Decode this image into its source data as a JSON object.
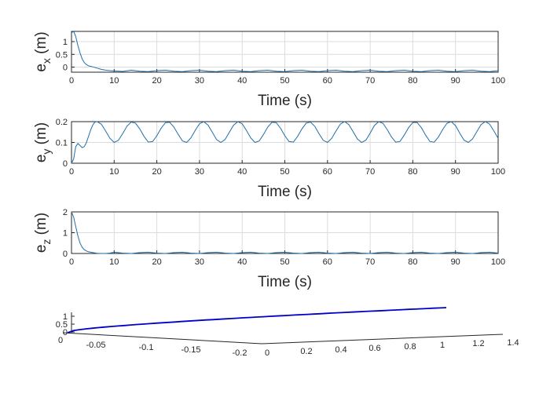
{
  "chart_data": [
    {
      "type": "line",
      "xlabel": "Time (s)",
      "ylabel_base": "e",
      "ylabel_sub": "x",
      "ylabel_unit": " (m)",
      "xlim": [
        0,
        100
      ],
      "ylim": [
        -0.2,
        1.4
      ],
      "xticks": [
        "0",
        "10",
        "20",
        "30",
        "40",
        "50",
        "60",
        "70",
        "80",
        "90",
        "100"
      ],
      "yticks": [
        "0",
        "0.5",
        "1"
      ],
      "grid": true,
      "series": [
        {
          "color": "#1f6fa8",
          "x": [
            0,
            0.5,
            1,
            1.5,
            2,
            2.5,
            3,
            3.5,
            4,
            5,
            6,
            7,
            8,
            9,
            10,
            12,
            14,
            16,
            18,
            20,
            22,
            24,
            26,
            28,
            30,
            32,
            34,
            36,
            38,
            40,
            42,
            44,
            46,
            48,
            50,
            52,
            54,
            56,
            58,
            60,
            62,
            64,
            66,
            68,
            70,
            72,
            74,
            76,
            78,
            80,
            82,
            84,
            86,
            88,
            90,
            92,
            94,
            96,
            98,
            100
          ],
          "y": [
            1.35,
            1.4,
            1.2,
            0.85,
            0.55,
            0.32,
            0.18,
            0.1,
            0.05,
            0.01,
            -0.04,
            -0.09,
            -0.12,
            -0.14,
            -0.15,
            -0.17,
            -0.12,
            -0.16,
            -0.18,
            -0.14,
            -0.12,
            -0.16,
            -0.18,
            -0.14,
            -0.12,
            -0.16,
            -0.18,
            -0.14,
            -0.12,
            -0.16,
            -0.18,
            -0.14,
            -0.12,
            -0.16,
            -0.18,
            -0.14,
            -0.12,
            -0.16,
            -0.18,
            -0.14,
            -0.12,
            -0.16,
            -0.18,
            -0.14,
            -0.12,
            -0.16,
            -0.18,
            -0.14,
            -0.12,
            -0.16,
            -0.18,
            -0.14,
            -0.12,
            -0.16,
            -0.18,
            -0.14,
            -0.12,
            -0.16,
            -0.18,
            -0.14
          ]
        }
      ]
    },
    {
      "type": "line",
      "xlabel": "Time (s)",
      "ylabel_base": "e",
      "ylabel_sub": "y",
      "ylabel_unit": " (m)",
      "xlim": [
        0,
        100
      ],
      "ylim": [
        0,
        0.2
      ],
      "xticks": [
        "0",
        "10",
        "20",
        "30",
        "40",
        "50",
        "60",
        "70",
        "80",
        "90",
        "100"
      ],
      "yticks": [
        "0",
        "0.1",
        "0.2"
      ],
      "grid": true,
      "series": [
        {
          "color": "#1f6fa8",
          "x": [
            0,
            0.5,
            1,
            1.5,
            2,
            2.5,
            3,
            3.5,
            4,
            4.5,
            5,
            5.5,
            6,
            7,
            8,
            9,
            10,
            11,
            12,
            13,
            14,
            15,
            16,
            17,
            18,
            19,
            20,
            21,
            22,
            23,
            24,
            25,
            26,
            27,
            28,
            29,
            30,
            31,
            32,
            33,
            34,
            35,
            36,
            37,
            38,
            39,
            40,
            41,
            42,
            43,
            44,
            45,
            46,
            47,
            48,
            49,
            50,
            51,
            52,
            53,
            54,
            55,
            56,
            57,
            58,
            59,
            60,
            61,
            62,
            63,
            64,
            65,
            66,
            67,
            68,
            69,
            70,
            71,
            72,
            73,
            74,
            75,
            76,
            77,
            78,
            79,
            80,
            81,
            82,
            83,
            84,
            85,
            86,
            87,
            88,
            89,
            90,
            91,
            92,
            93,
            94,
            95,
            96,
            97,
            98,
            99,
            100
          ],
          "y": [
            0.0,
            0.02,
            0.08,
            0.095,
            0.085,
            0.075,
            0.08,
            0.1,
            0.13,
            0.16,
            0.185,
            0.198,
            0.2,
            0.188,
            0.155,
            0.12,
            0.1,
            0.11,
            0.143,
            0.178,
            0.198,
            0.193,
            0.165,
            0.129,
            0.102,
            0.104,
            0.132,
            0.168,
            0.195,
            0.197,
            0.174,
            0.139,
            0.107,
            0.1,
            0.122,
            0.158,
            0.19,
            0.2,
            0.183,
            0.149,
            0.114,
            0.1,
            0.114,
            0.149,
            0.183,
            0.2,
            0.19,
            0.158,
            0.122,
            0.1,
            0.107,
            0.139,
            0.174,
            0.197,
            0.195,
            0.168,
            0.132,
            0.104,
            0.102,
            0.129,
            0.165,
            0.193,
            0.198,
            0.178,
            0.143,
            0.11,
            0.1,
            0.12,
            0.155,
            0.188,
            0.2,
            0.186,
            0.152,
            0.117,
            0.1,
            0.111,
            0.145,
            0.181,
            0.2,
            0.192,
            0.162,
            0.126,
            0.101,
            0.105,
            0.135,
            0.171,
            0.196,
            0.196,
            0.171,
            0.135,
            0.105,
            0.101,
            0.126,
            0.162,
            0.192,
            0.2,
            0.181,
            0.145,
            0.111,
            0.1,
            0.117,
            0.152,
            0.186,
            0.2,
            0.188,
            0.155,
            0.12
          ]
        }
      ]
    },
    {
      "type": "line",
      "xlabel": "Time (s)",
      "ylabel_base": "e",
      "ylabel_sub": "z",
      "ylabel_unit": " (m)",
      "xlim": [
        0,
        100
      ],
      "ylim": [
        0,
        2
      ],
      "xticks": [
        "0",
        "10",
        "20",
        "30",
        "40",
        "50",
        "60",
        "70",
        "80",
        "90",
        "100"
      ],
      "yticks": [
        "0",
        "1",
        "2"
      ],
      "grid": true,
      "series": [
        {
          "color": "#1f6fa8",
          "x": [
            0,
            0.5,
            1,
            1.5,
            2,
            2.5,
            3,
            3.5,
            4,
            5,
            6,
            7,
            8,
            9,
            10,
            12,
            14,
            16,
            18,
            20,
            22,
            24,
            26,
            28,
            30,
            32,
            34,
            36,
            38,
            40,
            42,
            44,
            46,
            48,
            50,
            52,
            54,
            56,
            58,
            60,
            62,
            64,
            66,
            68,
            70,
            72,
            74,
            76,
            78,
            80,
            82,
            84,
            86,
            88,
            90,
            92,
            94,
            96,
            98,
            100
          ],
          "y": [
            2.0,
            1.75,
            1.3,
            0.85,
            0.5,
            0.3,
            0.18,
            0.12,
            0.08,
            0.04,
            0.01,
            0.0,
            0.0,
            0.02,
            0.06,
            0.02,
            0.0,
            0.04,
            0.06,
            0.02,
            0.0,
            0.04,
            0.06,
            0.02,
            0.0,
            0.04,
            0.06,
            0.02,
            0.0,
            0.04,
            0.06,
            0.02,
            0.0,
            0.04,
            0.06,
            0.02,
            0.0,
            0.04,
            0.06,
            0.02,
            0.0,
            0.04,
            0.06,
            0.02,
            0.0,
            0.04,
            0.06,
            0.02,
            0.0,
            0.04,
            0.06,
            0.02,
            0.0,
            0.04,
            0.06,
            0.02,
            0.0,
            0.04,
            0.06,
            0.02
          ]
        }
      ]
    },
    {
      "type": "line3d",
      "xticks": [
        "-0.05",
        "-0.1",
        "-0.15",
        "-0.2",
        "0",
        "0.2",
        "0.4",
        "0.6",
        "0.8",
        "1",
        "1.2",
        "1.4"
      ],
      "zticks": [
        "0",
        "0.5",
        "1"
      ],
      "extra_ticks": [
        "0"
      ],
      "series": [
        {
          "color": "#0000c8"
        }
      ]
    }
  ]
}
